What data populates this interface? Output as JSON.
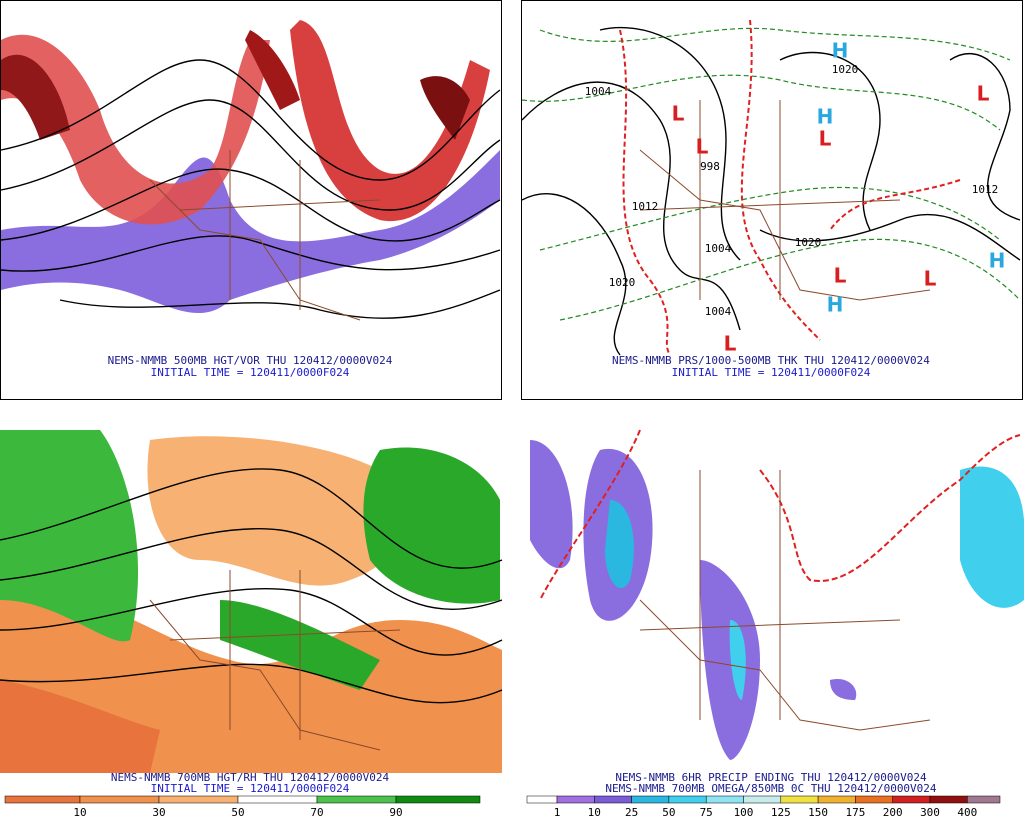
{
  "panels": [
    {
      "title": "NEMS-NMMB 500MB HGT/VOR THU 120412/0000V024",
      "subtitle": "INITIAL TIME = 120411/0000F024",
      "labels": []
    },
    {
      "title": "NEMS-NMMB PRS/1000-500MB THK THU 120412/0000V024",
      "subtitle": "INITIAL TIME = 120411/0000F024",
      "labels": [
        "H",
        "1020",
        "L",
        "L",
        "998",
        "L",
        "H",
        "L",
        "H",
        "L",
        "L",
        "H",
        "L",
        "1004",
        "1012",
        "1004",
        "1020",
        "1020",
        "1004",
        "1012"
      ]
    },
    {
      "title": "NEMS-NMMB 700MB HGT/RH THU 120412/0000V024",
      "subtitle": "INITIAL TIME = 120411/0000F024",
      "labels": []
    },
    {
      "title": "NEMS-NMMB 6HR PRECIP ENDING THU 120412/0000V024",
      "subtitle": "NEMS-NMMB 700MB OMEGA/850MB 0C THU 120412/0000V024",
      "labels": []
    }
  ],
  "colorbars": [
    {
      "labels": [
        10,
        30,
        50,
        70,
        90
      ],
      "colors": [
        "#e8733c",
        "#f0914e",
        "#f7b273",
        "#ffffff",
        "#4cc24c",
        "#108a10"
      ]
    },
    {
      "labels": [
        1,
        10,
        25,
        50,
        75,
        100,
        125,
        150,
        175,
        200,
        300,
        400
      ],
      "colors": [
        "#ffffff",
        "#a070e0",
        "#7a5cd6",
        "#2ab8e0",
        "#40d0ee",
        "#8ee4f2",
        "#c8ecec",
        "#f0e040",
        "#f0b030",
        "#e87020",
        "#d02020",
        "#901010",
        "#a07890"
      ]
    }
  ]
}
